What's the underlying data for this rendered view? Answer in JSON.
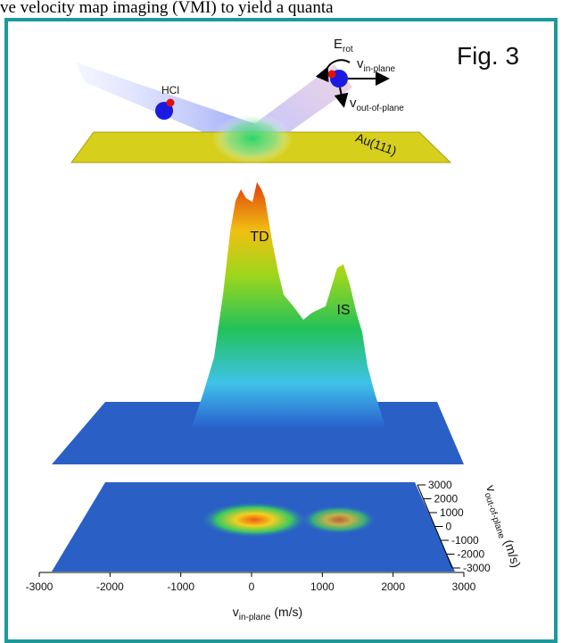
{
  "header_text": "ve velocity map imaging (VMI) to yield a quanta",
  "figure": {
    "label": "Fig. 3",
    "molecule": "HCl",
    "rotation": {
      "symbol": "E",
      "subscript": "rot"
    },
    "v_in_plane": {
      "symbol": "v",
      "subscript": "in-plane"
    },
    "v_out_of_plane": {
      "symbol": "v",
      "subscript": "out-of-plane"
    },
    "surface": "Au(111)",
    "peaks": [
      "TD",
      "IS"
    ],
    "x_axis": {
      "symbol": "v",
      "subscript": "in-plane",
      "unit": "(m/s)",
      "ticks": [
        -3000,
        -2000,
        -1000,
        0,
        1000,
        2000,
        3000
      ]
    },
    "y_axis": {
      "symbol": "v",
      "subscript": "out-of-plane",
      "unit": "(m/s)",
      "ticks": [
        3000,
        2000,
        1000,
        0,
        -1000,
        -2000,
        -3000
      ]
    }
  }
}
